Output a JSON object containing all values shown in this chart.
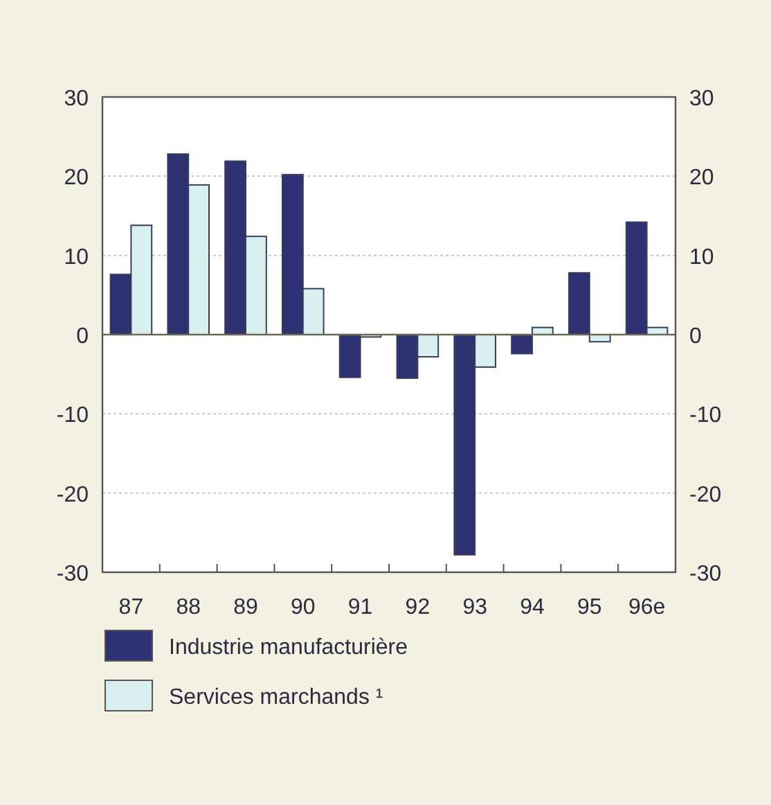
{
  "chart_data": {
    "type": "bar",
    "categories": [
      "87",
      "88",
      "89",
      "90",
      "91",
      "92",
      "93",
      "94",
      "95",
      "96e"
    ],
    "series": [
      {
        "name": "Industrie manufacturière",
        "color": "#2e3172",
        "values": [
          7.6,
          22.8,
          21.9,
          20.2,
          -5.4,
          -5.5,
          -27.8,
          -2.4,
          7.8,
          14.2
        ]
      },
      {
        "name": "Services marchands ¹",
        "color": "#d8f0f0",
        "values": [
          13.8,
          18.9,
          12.4,
          5.8,
          -0.3,
          -2.8,
          -4.1,
          0.9,
          -0.9,
          0.9
        ]
      }
    ],
    "ylim": [
      -30,
      30
    ],
    "yticks": [
      -30,
      -20,
      -10,
      0,
      10,
      20,
      30
    ],
    "y2lim": [
      -30,
      30
    ],
    "y2ticks": [
      -30,
      -20,
      -10,
      0,
      10,
      20,
      30
    ],
    "grid": "y",
    "legend": "bottom left"
  }
}
